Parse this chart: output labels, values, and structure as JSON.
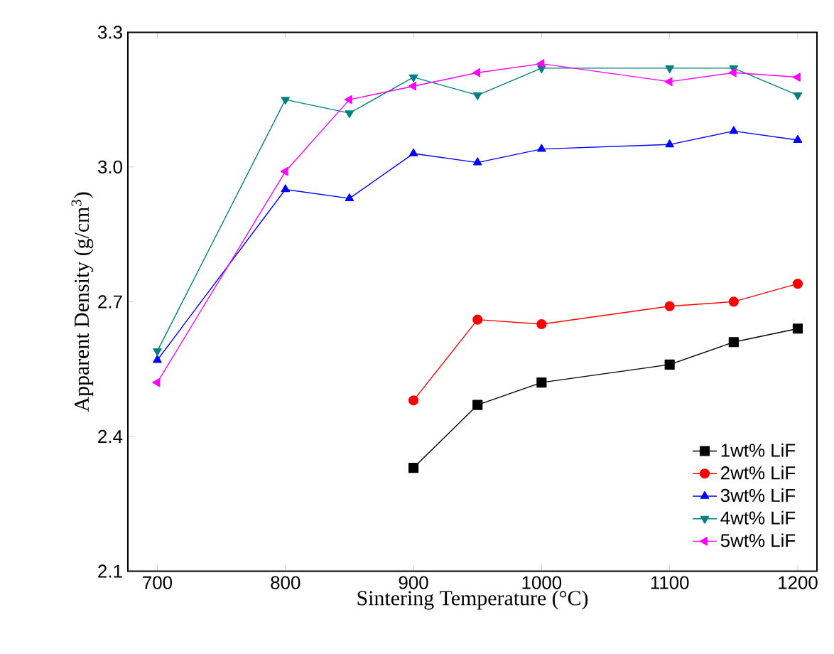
{
  "chart_data": {
    "type": "line",
    "xlabel": "Sintering Temperature  (°C)",
    "ylabel": "Apparent Density (g/cm$^{3}$)",
    "xlim": [
      677,
      1215
    ],
    "ylim": [
      2.1,
      3.3
    ],
    "xticks": [
      700,
      800,
      900,
      1000,
      1100,
      1200
    ],
    "yticks": [
      2.1,
      2.4,
      2.7,
      {
        "value": 3.0,
        "label": "3.0"
      },
      3.3
    ],
    "legend": "bottom right",
    "grid": false,
    "line_style": "solid",
    "series": [
      {
        "name": "1wt% LiF",
        "color": "#000000",
        "marker": "square",
        "x": [
          900,
          950,
          1000,
          1100,
          1150,
          1200
        ],
        "values": [
          2.33,
          2.47,
          2.52,
          2.56,
          2.61,
          2.64
        ]
      },
      {
        "name": "2wt% LiF",
        "color": "#ff0000",
        "marker": "circle",
        "x": [
          900,
          950,
          1000,
          1100,
          1150,
          1200
        ],
        "values": [
          2.48,
          2.66,
          2.65,
          2.69,
          2.7,
          2.74
        ]
      },
      {
        "name": "3wt% LiF",
        "color": "#0000ff",
        "marker": "triangle",
        "x": [
          700,
          800,
          850,
          900,
          950,
          1000,
          1100,
          1150,
          1200
        ],
        "values": [
          2.57,
          2.95,
          2.93,
          3.03,
          3.01,
          3.04,
          3.05,
          3.08,
          3.06
        ]
      },
      {
        "name": "4wt% LiF",
        "color": "#008080",
        "marker": "triangle-down",
        "x": [
          700,
          800,
          850,
          900,
          950,
          1000,
          1100,
          1150,
          1200
        ],
        "values": [
          2.59,
          3.15,
          3.12,
          3.2,
          3.16,
          3.22,
          3.22,
          3.22,
          3.16
        ]
      },
      {
        "name": "5wt% LiF",
        "color": "#ff00ff",
        "marker": "triangle-left",
        "x": [
          700,
          800,
          850,
          900,
          950,
          1000,
          1100,
          1150,
          1200
        ],
        "values": [
          2.52,
          2.99,
          3.15,
          3.18,
          3.21,
          3.23,
          3.19,
          3.21,
          3.2
        ]
      }
    ]
  }
}
